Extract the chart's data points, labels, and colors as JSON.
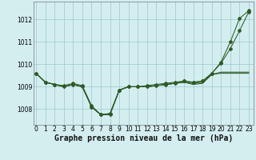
{
  "title": "Graphe pression niveau de la mer (hPa)",
  "background_color": "#d4eef0",
  "grid_color": "#9ac8cc",
  "line_color": "#2d5a27",
  "x_ticks": [
    0,
    1,
    2,
    3,
    4,
    5,
    6,
    7,
    8,
    9,
    10,
    11,
    12,
    13,
    14,
    15,
    16,
    17,
    18,
    19,
    20,
    21,
    22,
    23
  ],
  "y_ticks": [
    1008,
    1009,
    1010,
    1011,
    1012
  ],
  "ylim": [
    1007.3,
    1012.8
  ],
  "xlim": [
    -0.3,
    23.5
  ],
  "series": [
    [
      1009.6,
      1009.2,
      1009.1,
      1009.0,
      1009.1,
      1009.0,
      1008.1,
      1007.75,
      1007.8,
      1008.85,
      1009.0,
      1009.0,
      1009.0,
      1009.05,
      1009.1,
      1009.15,
      1009.2,
      1009.15,
      1009.2,
      1009.55,
      1009.65,
      1009.65,
      1009.65,
      1009.65
    ],
    [
      1009.6,
      1009.2,
      1009.1,
      1009.0,
      1009.1,
      1009.0,
      1008.1,
      1007.75,
      1007.8,
      1008.85,
      1009.0,
      1009.0,
      1009.0,
      1009.05,
      1009.1,
      1009.15,
      1009.2,
      1009.1,
      1009.15,
      1009.55,
      1009.6,
      1009.6,
      1009.6,
      1009.6
    ],
    [
      1009.6,
      1009.2,
      1009.1,
      1009.0,
      1009.1,
      1009.0,
      1008.1,
      1007.75,
      1007.8,
      1008.85,
      1009.0,
      1009.0,
      1009.0,
      1009.05,
      1009.1,
      1009.15,
      1009.25,
      1009.2,
      1009.25,
      1009.6,
      1010.05,
      1010.7,
      1011.5,
      1012.35
    ],
    [
      1009.6,
      1009.2,
      1009.1,
      1009.05,
      1009.15,
      1009.05,
      1008.15,
      1007.75,
      1007.75,
      1008.85,
      1009.0,
      1009.0,
      1009.05,
      1009.1,
      1009.15,
      1009.2,
      1009.25,
      1009.2,
      1009.25,
      1009.6,
      1010.1,
      1011.0,
      1012.05,
      1012.4
    ]
  ],
  "marker_series": [
    2,
    3
  ],
  "marker": "D",
  "marker_size": 2.0,
  "tick_fontsize": 5.5,
  "xlabel_fontsize": 7.0,
  "linewidth": 0.75
}
